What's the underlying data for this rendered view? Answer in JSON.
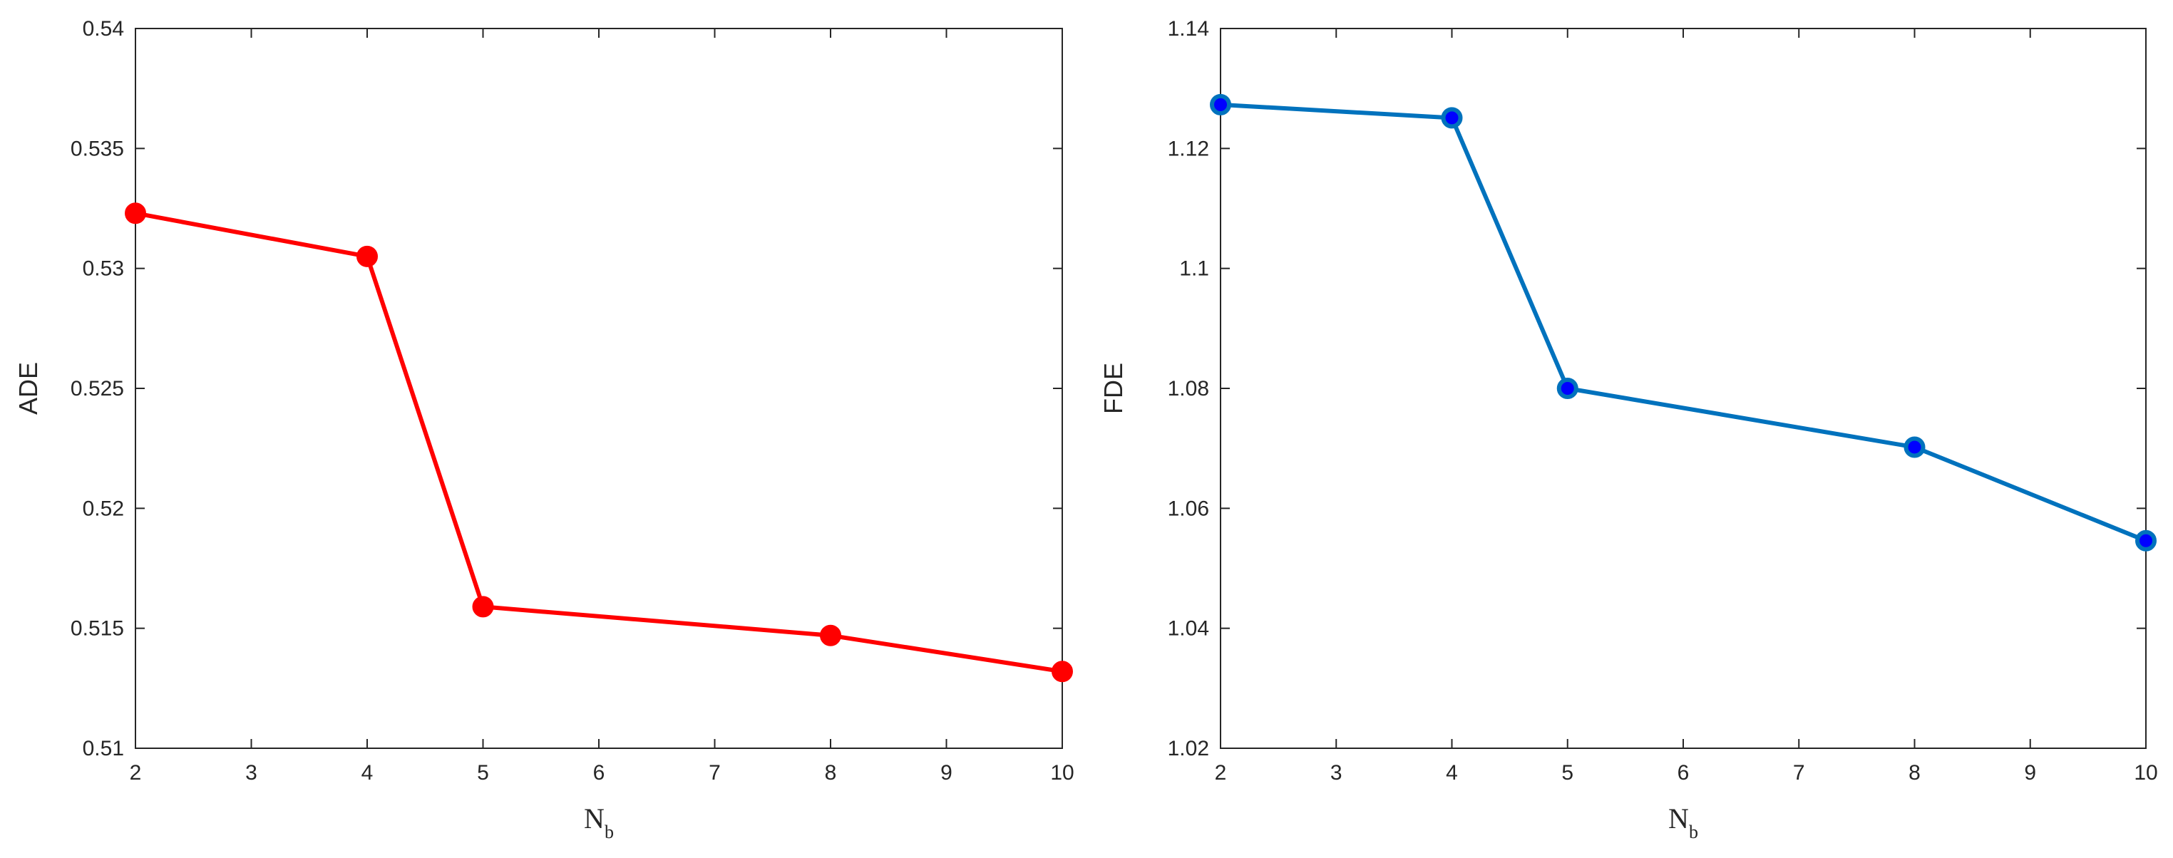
{
  "chart_data": [
    {
      "type": "line",
      "title": "",
      "xlabel": "N",
      "xlabel_sub": "b",
      "ylabel": "ADE",
      "xlim": [
        2,
        10
      ],
      "ylim": [
        0.51,
        0.54
      ],
      "xticks": [
        2,
        3,
        4,
        5,
        6,
        7,
        8,
        9,
        10
      ],
      "xtick_labels": [
        "2",
        "3",
        "4",
        "5",
        "6",
        "7",
        "8",
        "9",
        "10"
      ],
      "yticks": [
        0.51,
        0.515,
        0.52,
        0.525,
        0.53,
        0.535,
        0.54
      ],
      "ytick_labels": [
        "0.51",
        "0.515",
        "0.52",
        "0.525",
        "0.53",
        "0.535",
        "0.54"
      ],
      "grid": false,
      "series": [
        {
          "x": [
            2,
            4,
            5,
            8,
            10
          ],
          "values": [
            0.5323,
            0.5305,
            0.5159,
            0.5147,
            0.5132
          ],
          "color": "#ff0000",
          "marker": "filled-circle",
          "marker_face": "#ff0000",
          "marker_edge": "#ff0000"
        }
      ]
    },
    {
      "type": "line",
      "title": "",
      "xlabel": "N",
      "xlabel_sub": "b",
      "ylabel": "FDE",
      "xlim": [
        2,
        10
      ],
      "ylim": [
        1.02,
        1.14
      ],
      "xticks": [
        2,
        3,
        4,
        5,
        6,
        7,
        8,
        9,
        10
      ],
      "xtick_labels": [
        "2",
        "3",
        "4",
        "5",
        "6",
        "7",
        "8",
        "9",
        "10"
      ],
      "yticks": [
        1.02,
        1.04,
        1.06,
        1.08,
        1.1,
        1.12,
        1.14
      ],
      "ytick_labels": [
        "1.02",
        "1.04",
        "1.06",
        "1.08",
        "1.1",
        "1.12",
        "1.14"
      ],
      "grid": false,
      "series": [
        {
          "x": [
            2,
            4,
            5,
            8,
            10
          ],
          "values": [
            1.1273,
            1.1251,
            1.08,
            1.0702,
            1.0546
          ],
          "color": "#0072bd",
          "marker": "circle",
          "marker_face": "#0000ff",
          "marker_edge": "#0072bd"
        }
      ]
    }
  ]
}
